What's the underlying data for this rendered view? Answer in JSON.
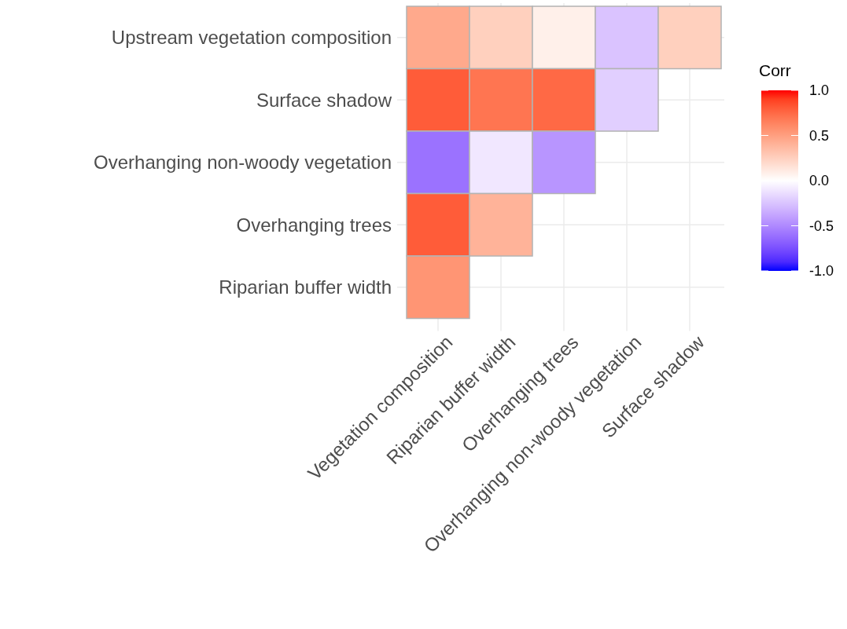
{
  "chart_data": {
    "type": "heatmap",
    "legend_title": "Corr",
    "categories": [
      "Vegetation composition",
      "Riparian buffer width",
      "Overhanging trees",
      "Overhanging non-woody vegetation",
      "Surface shadow"
    ],
    "y_categories": [
      "Upstream vegetation composition",
      "Surface shadow",
      "Overhanging non-woody vegetation",
      "Overhanging trees",
      "Riparian buffer width"
    ],
    "cells": [
      [
        0.45,
        0.25,
        0.08,
        -0.25,
        0.25
      ],
      [
        0.8,
        0.7,
        0.75,
        -0.2,
        null
      ],
      [
        -0.6,
        -0.1,
        -0.45,
        null,
        null
      ],
      [
        0.8,
        0.4,
        null,
        null,
        null
      ],
      [
        0.55,
        null,
        null,
        null,
        null
      ]
    ],
    "clim": [
      -1,
      1
    ],
    "cticks": [
      {
        "value": 1,
        "label": "1.0"
      },
      {
        "value": 0.5,
        "label": "0.5"
      },
      {
        "value": 0,
        "label": "0.0"
      },
      {
        "value": -0.5,
        "label": "-0.5"
      },
      {
        "value": -1,
        "label": "-1.0"
      }
    ],
    "colors": [
      "#0000ff",
      "#ffffff",
      "#ff0000"
    ],
    "grid": true
  }
}
